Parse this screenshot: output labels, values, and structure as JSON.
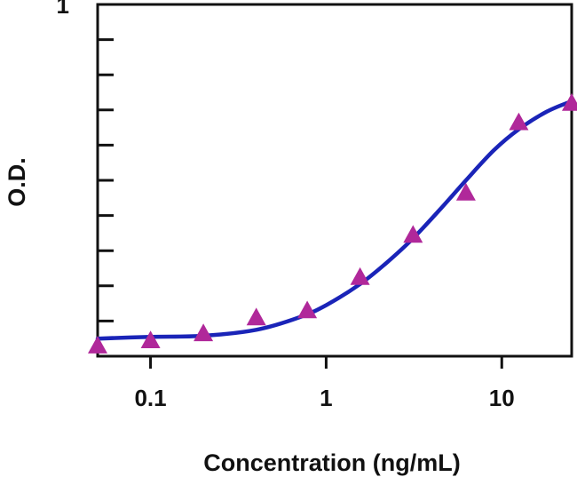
{
  "chart_data": {
    "type": "scatter",
    "title": "",
    "xlabel": "Concentration (ng/mL)",
    "ylabel": "O.D.",
    "x_scale": "log",
    "xlim": [
      0.05,
      25
    ],
    "ylim": [
      0,
      1
    ],
    "x_ticks": [
      {
        "value": 0.1,
        "label": "0.1"
      },
      {
        "value": 1,
        "label": "1"
      },
      {
        "value": 10,
        "label": "10"
      }
    ],
    "y_ticks": [
      0,
      0.1,
      0.2,
      0.3,
      0.4,
      0.5,
      0.6,
      0.7,
      0.8,
      0.9,
      1
    ],
    "y_tick_labels": [
      {
        "value": 1,
        "label": "1"
      }
    ],
    "grid": false,
    "colors": {
      "points": "#b0289a",
      "curve": "#1a24b8",
      "axis": "#111111"
    },
    "marker": "triangle",
    "series": [
      {
        "values": [
          {
            "x": 0.05,
            "y": 0.03
          },
          {
            "x": 0.1,
            "y": 0.045
          },
          {
            "x": 0.2,
            "y": 0.065
          },
          {
            "x": 0.4,
            "y": 0.11
          },
          {
            "x": 0.78,
            "y": 0.13
          },
          {
            "x": 1.56,
            "y": 0.225
          },
          {
            "x": 3.125,
            "y": 0.345
          },
          {
            "x": 6.25,
            "y": 0.465
          },
          {
            "x": 12.5,
            "y": 0.665
          },
          {
            "x": 25,
            "y": 0.72
          }
        ]
      }
    ],
    "fit_curve": [
      {
        "x": 0.05,
        "y": 0.05
      },
      {
        "x": 0.1,
        "y": 0.055
      },
      {
        "x": 0.2,
        "y": 0.058
      },
      {
        "x": 0.4,
        "y": 0.075
      },
      {
        "x": 0.7,
        "y": 0.11
      },
      {
        "x": 1.0,
        "y": 0.145
      },
      {
        "x": 1.56,
        "y": 0.205
      },
      {
        "x": 2.2,
        "y": 0.265
      },
      {
        "x": 3.125,
        "y": 0.335
      },
      {
        "x": 4.5,
        "y": 0.42
      },
      {
        "x": 6.25,
        "y": 0.5
      },
      {
        "x": 9.0,
        "y": 0.585
      },
      {
        "x": 12.5,
        "y": 0.645
      },
      {
        "x": 18,
        "y": 0.695
      },
      {
        "x": 25,
        "y": 0.725
      }
    ]
  }
}
